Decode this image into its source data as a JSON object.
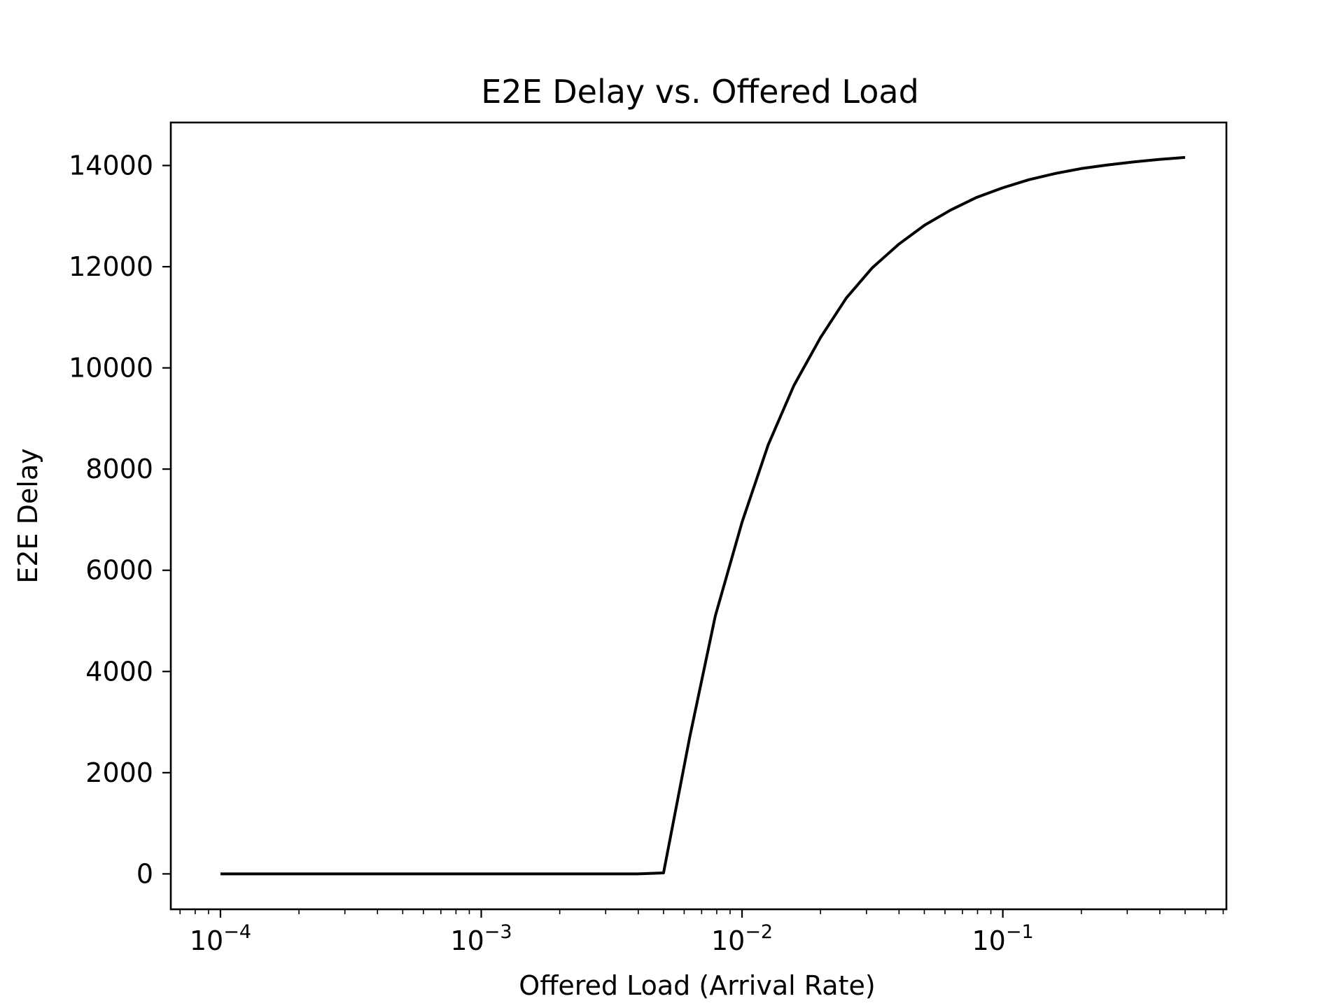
{
  "chart_data": {
    "type": "line",
    "title": "E2E Delay vs. Offered Load",
    "xlabel": "Offered Load (Arrival Rate)",
    "ylabel": "E2E Delay",
    "xscale": "log",
    "xlim": [
      6.45e-05,
      0.72
    ],
    "ylim": [
      -700,
      14850
    ],
    "x_ticks": [
      {
        "value": 0.0001,
        "base": "10",
        "exp": "−4"
      },
      {
        "value": 0.001,
        "base": "10",
        "exp": "−3"
      },
      {
        "value": 0.01,
        "base": "10",
        "exp": "−2"
      },
      {
        "value": 0.1,
        "base": "10",
        "exp": "−1"
      }
    ],
    "y_ticks": [
      {
        "value": 0,
        "label": "0"
      },
      {
        "value": 2000,
        "label": "2000"
      },
      {
        "value": 4000,
        "label": "4000"
      },
      {
        "value": 6000,
        "label": "6000"
      },
      {
        "value": 8000,
        "label": "8000"
      },
      {
        "value": 10000,
        "label": "10000"
      },
      {
        "value": 12000,
        "label": "12000"
      },
      {
        "value": 14000,
        "label": "14000"
      }
    ],
    "grid": false,
    "series": [
      {
        "name": "E2E Delay",
        "color": "#000000",
        "x": [
          0.0001,
          0.001,
          0.004,
          0.005,
          0.0063,
          0.0079,
          0.01,
          0.0126,
          0.0158,
          0.02,
          0.0251,
          0.0316,
          0.0398,
          0.0501,
          0.0631,
          0.0794,
          0.1,
          0.126,
          0.158,
          0.2,
          0.251,
          0.316,
          0.398,
          0.5
        ],
        "y": [
          0,
          0,
          0,
          20,
          2700,
          5100,
          6950,
          8480,
          9650,
          10600,
          11380,
          11980,
          12440,
          12820,
          13120,
          13370,
          13560,
          13720,
          13840,
          13940,
          14010,
          14070,
          14120,
          14160
        ]
      }
    ]
  }
}
